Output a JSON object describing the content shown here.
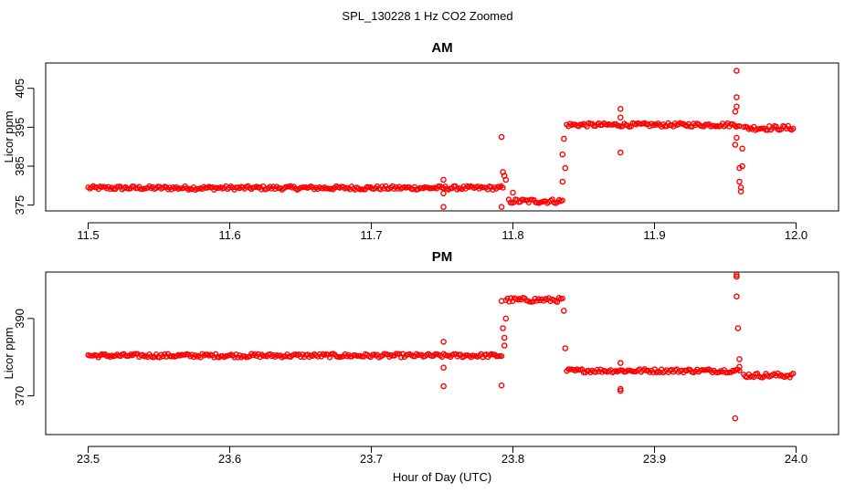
{
  "figure_title": "SPL_130228  1 Hz CO2 Zoomed",
  "point_color": "#ff0000",
  "chart_data": [
    {
      "type": "scatter",
      "title": "AM",
      "xlabel": "",
      "ylabel": "Licor ppm",
      "xlim": [
        11.47,
        12.03
      ],
      "ylim": [
        373.5,
        411.5
      ],
      "xticks": [
        11.5,
        11.6,
        11.7,
        11.8,
        11.9,
        12.0
      ],
      "xtick_labels": [
        "11.5",
        "11.6",
        "11.7",
        "11.8",
        "11.9",
        "12.0"
      ],
      "yticks": [
        375,
        385,
        395,
        405
      ],
      "ytick_labels": [
        "375",
        "385",
        "395",
        "405"
      ],
      "grid": false,
      "segments": [
        {
          "x_start": 11.5,
          "x_end": 11.793,
          "y": 379.4,
          "noise": 0.5
        },
        {
          "x_start": 11.797,
          "x_end": 11.835,
          "y": 376.0,
          "noise": 0.6
        },
        {
          "x_start": 11.838,
          "x_end": 11.96,
          "y": 395.6,
          "noise": 0.5
        },
        {
          "x_start": 11.963,
          "x_end": 11.998,
          "y": 394.8,
          "noise": 0.6
        }
      ],
      "outliers": [
        {
          "x": 11.751,
          "y": 381.5
        },
        {
          "x": 11.751,
          "y": 378.0
        },
        {
          "x": 11.751,
          "y": 374.5
        },
        {
          "x": 11.792,
          "y": 392.5
        },
        {
          "x": 11.792,
          "y": 374.5
        },
        {
          "x": 11.793,
          "y": 383.5
        },
        {
          "x": 11.794,
          "y": 382.5
        },
        {
          "x": 11.795,
          "y": 381.5
        },
        {
          "x": 11.8,
          "y": 378.2
        },
        {
          "x": 11.835,
          "y": 381.0
        },
        {
          "x": 11.835,
          "y": 388.0
        },
        {
          "x": 11.836,
          "y": 392.0
        },
        {
          "x": 11.837,
          "y": 384.5
        },
        {
          "x": 11.876,
          "y": 399.7
        },
        {
          "x": 11.876,
          "y": 388.5
        },
        {
          "x": 11.876,
          "y": 397.5
        },
        {
          "x": 11.958,
          "y": 409.5
        },
        {
          "x": 11.958,
          "y": 402.7
        },
        {
          "x": 11.958,
          "y": 400.3
        },
        {
          "x": 11.957,
          "y": 399.0
        },
        {
          "x": 11.957,
          "y": 390.5
        },
        {
          "x": 11.958,
          "y": 392.3
        },
        {
          "x": 11.96,
          "y": 384.5
        },
        {
          "x": 11.96,
          "y": 381.0
        },
        {
          "x": 11.961,
          "y": 379.5
        },
        {
          "x": 11.961,
          "y": 378.5
        },
        {
          "x": 11.962,
          "y": 385.0
        },
        {
          "x": 11.962,
          "y": 389.5
        }
      ]
    },
    {
      "type": "scatter",
      "title": "PM",
      "xlabel": "Hour of Day (UTC)",
      "ylabel": "Licor ppm",
      "xlim": [
        23.47,
        24.03
      ],
      "ylim": [
        360.0,
        402.0
      ],
      "xticks": [
        23.5,
        23.6,
        23.7,
        23.8,
        23.9,
        24.0
      ],
      "xtick_labels": [
        "23.5",
        "23.6",
        "23.7",
        "23.8",
        "23.9",
        "24.0"
      ],
      "yticks": [
        370,
        390
      ],
      "ytick_labels": [
        "370",
        "390"
      ],
      "grid": false,
      "segments": [
        {
          "x_start": 23.5,
          "x_end": 23.792,
          "y": 380.4,
          "noise": 0.5
        },
        {
          "x_start": 23.795,
          "x_end": 23.835,
          "y": 394.8,
          "noise": 0.6
        },
        {
          "x_start": 23.838,
          "x_end": 23.96,
          "y": 376.5,
          "noise": 0.5
        },
        {
          "x_start": 23.963,
          "x_end": 23.998,
          "y": 375.3,
          "noise": 0.6
        }
      ],
      "outliers": [
        {
          "x": 23.751,
          "y": 384.0
        },
        {
          "x": 23.751,
          "y": 377.3
        },
        {
          "x": 23.751,
          "y": 372.5
        },
        {
          "x": 23.792,
          "y": 372.7
        },
        {
          "x": 23.792,
          "y": 394.5
        },
        {
          "x": 23.793,
          "y": 387.5
        },
        {
          "x": 23.794,
          "y": 385.0
        },
        {
          "x": 23.794,
          "y": 383.0
        },
        {
          "x": 23.795,
          "y": 390.0
        },
        {
          "x": 23.836,
          "y": 392.0
        },
        {
          "x": 23.837,
          "y": 382.3
        },
        {
          "x": 23.876,
          "y": 378.5
        },
        {
          "x": 23.876,
          "y": 371.8
        },
        {
          "x": 23.876,
          "y": 371.3
        },
        {
          "x": 23.958,
          "y": 401.3
        },
        {
          "x": 23.958,
          "y": 400.8
        },
        {
          "x": 23.958,
          "y": 395.7
        },
        {
          "x": 23.959,
          "y": 387.5
        },
        {
          "x": 23.96,
          "y": 379.5
        },
        {
          "x": 23.957,
          "y": 364.2
        },
        {
          "x": 23.96,
          "y": 377.5
        }
      ]
    }
  ]
}
